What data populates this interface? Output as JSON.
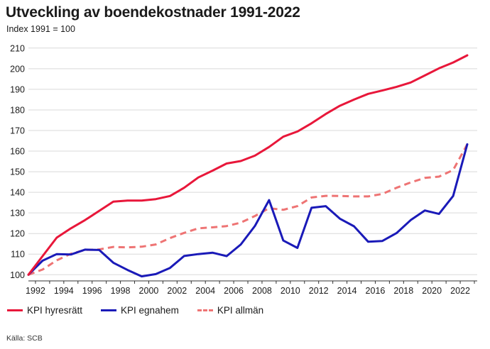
{
  "header": {
    "title": "Utveckling av boendekostnader 1991-2022",
    "subtitle": "Index 1991 = 100"
  },
  "footer": {
    "source": "Källa: SCB"
  },
  "chart_data": {
    "type": "line",
    "title": "Utveckling av boendekostnader 1991-2022",
    "subtitle": "Index 1991 = 100",
    "xlim": [
      1991.5,
      2023.2
    ],
    "ylim": [
      97,
      212
    ],
    "x_ticks": [
      1992,
      1994,
      1996,
      1998,
      2000,
      2002,
      2004,
      2006,
      2008,
      2010,
      2012,
      2014,
      2016,
      2018,
      2020,
      2022
    ],
    "y_ticks": [
      100,
      110,
      120,
      130,
      140,
      150,
      160,
      170,
      180,
      190,
      200,
      210
    ],
    "grid": "horizontal",
    "legend_position": "bottom-left",
    "series": [
      {
        "name": "KPI hyresrätt",
        "color": "#e8173a",
        "style": "solid",
        "x": [
          1991.5,
          1992.5,
          1993.5,
          1994.5,
          1995.5,
          1996.5,
          1997.5,
          1998.5,
          1999.5,
          2000.5,
          2001.5,
          2002.5,
          2003.5,
          2004.5,
          2005.5,
          2006.5,
          2007.5,
          2008.5,
          2009.5,
          2010.5,
          2011.5,
          2012.5,
          2013.5,
          2014.5,
          2015.5,
          2016.5,
          2017.5,
          2018.5,
          2019.5,
          2020.5,
          2021.5,
          2022.5
        ],
        "values": [
          100,
          109,
          118,
          122.5,
          126.5,
          131,
          135.5,
          136,
          136,
          136.7,
          138.2,
          142.2,
          147.2,
          150.5,
          154,
          155.2,
          157.8,
          162,
          167,
          169.5,
          173.5,
          178,
          182,
          185,
          187.8,
          189.4,
          191.2,
          193.3,
          196.7,
          200.2,
          203,
          206.5
        ]
      },
      {
        "name": "KPI egnahem",
        "color": "#1a1ab8",
        "style": "solid",
        "x": [
          1991.5,
          1992.5,
          1993.5,
          1994.5,
          1995.5,
          1996.5,
          1997.5,
          1998.5,
          1999.5,
          2000.5,
          2001.5,
          2002.5,
          2003.5,
          2004.5,
          2005.5,
          2006.5,
          2007.5,
          2008.5,
          2009.5,
          2010.5,
          2011.5,
          2012.5,
          2013.5,
          2014.5,
          2015.5,
          2016.5,
          2017.5,
          2018.5,
          2019.5,
          2020.5,
          2021.5,
          2022.5
        ],
        "values": [
          100,
          106.8,
          110,
          109.8,
          112.2,
          112,
          105.8,
          102.3,
          99.2,
          100.3,
          103.3,
          109.1,
          110,
          110.7,
          109,
          114.7,
          123.7,
          136.2,
          116.6,
          113,
          132.5,
          133.3,
          127.2,
          123.5,
          116,
          116.4,
          120.2,
          126.5,
          131.2,
          129.5,
          138.2,
          163.3
        ]
      },
      {
        "name": "KPI allmän",
        "color": "#ee7474",
        "style": "dashed",
        "x": [
          1991.5,
          1992.5,
          1993.5,
          1994.5,
          1995.5,
          1996.5,
          1997.5,
          1998.5,
          1999.5,
          2000.5,
          2001.5,
          2002.5,
          2003.5,
          2004.5,
          2005.5,
          2006.5,
          2007.5,
          2008.5,
          2009.5,
          2010.5,
          2011.5,
          2012.5,
          2013.5,
          2014.5,
          2015.5,
          2016.5,
          2017.5,
          2018.5,
          2019.5,
          2020.5,
          2021.5,
          2022.5
        ],
        "values": [
          100,
          102.5,
          107,
          110.2,
          112,
          112.3,
          113.5,
          113.3,
          113.6,
          114.7,
          117.8,
          120.3,
          122.5,
          123,
          123.6,
          125.3,
          128.5,
          132.3,
          131.5,
          133.3,
          137.5,
          138.3,
          138.2,
          138,
          138,
          139.2,
          142.2,
          144.8,
          147,
          147.6,
          150.8,
          163.3
        ]
      }
    ]
  }
}
